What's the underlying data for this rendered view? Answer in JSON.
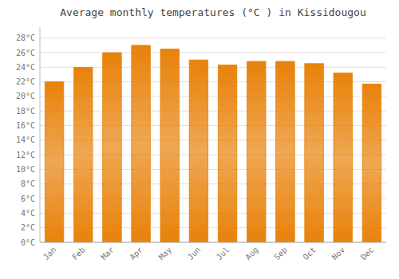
{
  "chart_data": {
    "type": "bar",
    "title": "Average monthly temperatures (°C ) in Kissidougou",
    "categories": [
      "Jan",
      "Feb",
      "Mar",
      "Apr",
      "May",
      "Jun",
      "Jul",
      "Aug",
      "Sep",
      "Oct",
      "Nov",
      "Dec"
    ],
    "values": [
      22.0,
      24.0,
      26.0,
      27.0,
      26.5,
      25.0,
      24.3,
      24.8,
      24.8,
      24.5,
      23.2,
      21.7
    ],
    "color": "#E8820A",
    "ylim": [
      0,
      29.5
    ],
    "yticks": [
      {
        "value": 0,
        "label": "0°C"
      },
      {
        "value": 2,
        "label": "2°C"
      },
      {
        "value": 4,
        "label": "4°C"
      },
      {
        "value": 6,
        "label": "6°C"
      },
      {
        "value": 8,
        "label": "8°C"
      },
      {
        "value": 10,
        "label": "10°C"
      },
      {
        "value": 12,
        "label": "12°C"
      },
      {
        "value": 14,
        "label": "14°C"
      },
      {
        "value": 16,
        "label": "16°C"
      },
      {
        "value": 18,
        "label": "18°C"
      },
      {
        "value": 20,
        "label": "20°C"
      },
      {
        "value": 22,
        "label": "22°C"
      },
      {
        "value": 24,
        "label": "24°C"
      },
      {
        "value": 26,
        "label": "26°C"
      },
      {
        "value": 28,
        "label": "28°C"
      }
    ],
    "grid": true
  }
}
